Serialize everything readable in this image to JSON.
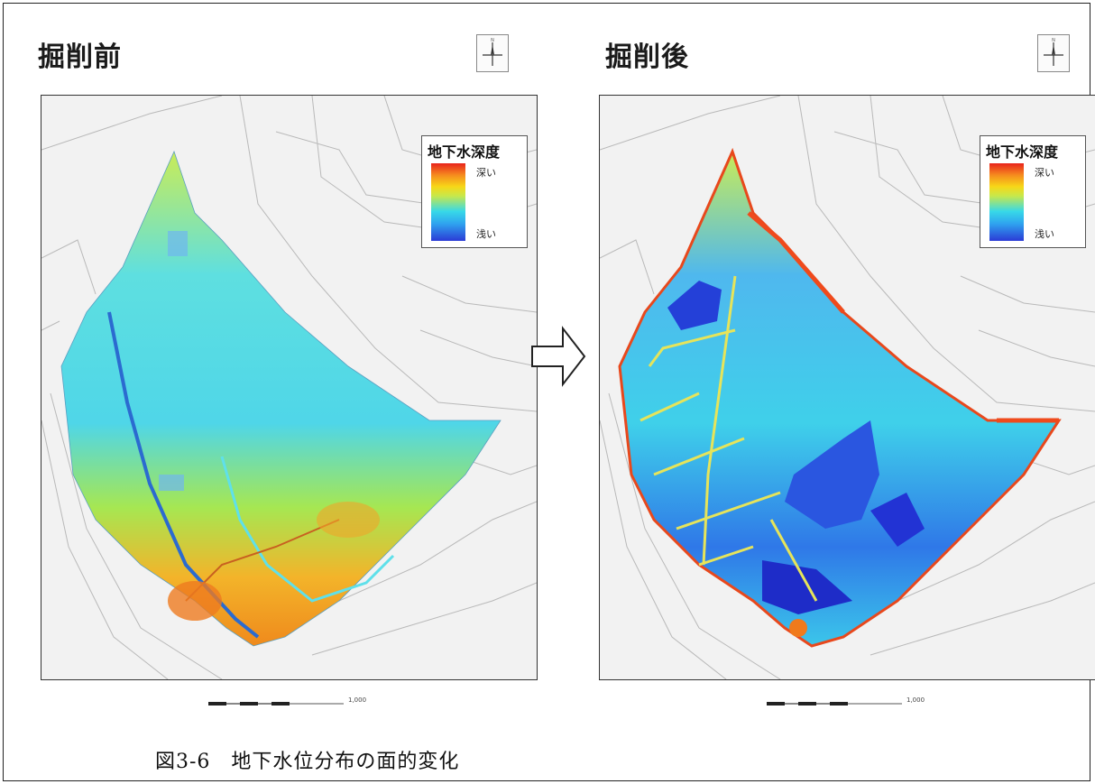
{
  "figure": {
    "caption": "図3-6　地下水位分布の面的変化",
    "arrow_icon": "right-outline-arrow"
  },
  "panels": [
    {
      "title": "掘削前",
      "legend": {
        "title": "地下水深度",
        "high_label": "深い",
        "low_label": "浅い"
      },
      "scale_label": "1,000",
      "north_icon": "north-arrow-icon",
      "dominant_colors": [
        "#3fd3ea",
        "#9be84d",
        "#f0a524"
      ]
    },
    {
      "title": "掘削後",
      "legend": {
        "title": "地下水深度",
        "high_label": "深い",
        "low_label": "浅い"
      },
      "scale_label": "1,000",
      "north_icon": "north-arrow-icon",
      "dominant_colors": [
        "#2a6ee8",
        "#3fd3ea",
        "#2233d4"
      ]
    }
  ],
  "colors": {
    "deep": "#e8231c",
    "mid": "#f7d718",
    "cyan": "#37d9e8",
    "shallow": "#2b3bd6",
    "basemap": "#f2f2f2",
    "basemap_lines": "#b9b9b9"
  }
}
